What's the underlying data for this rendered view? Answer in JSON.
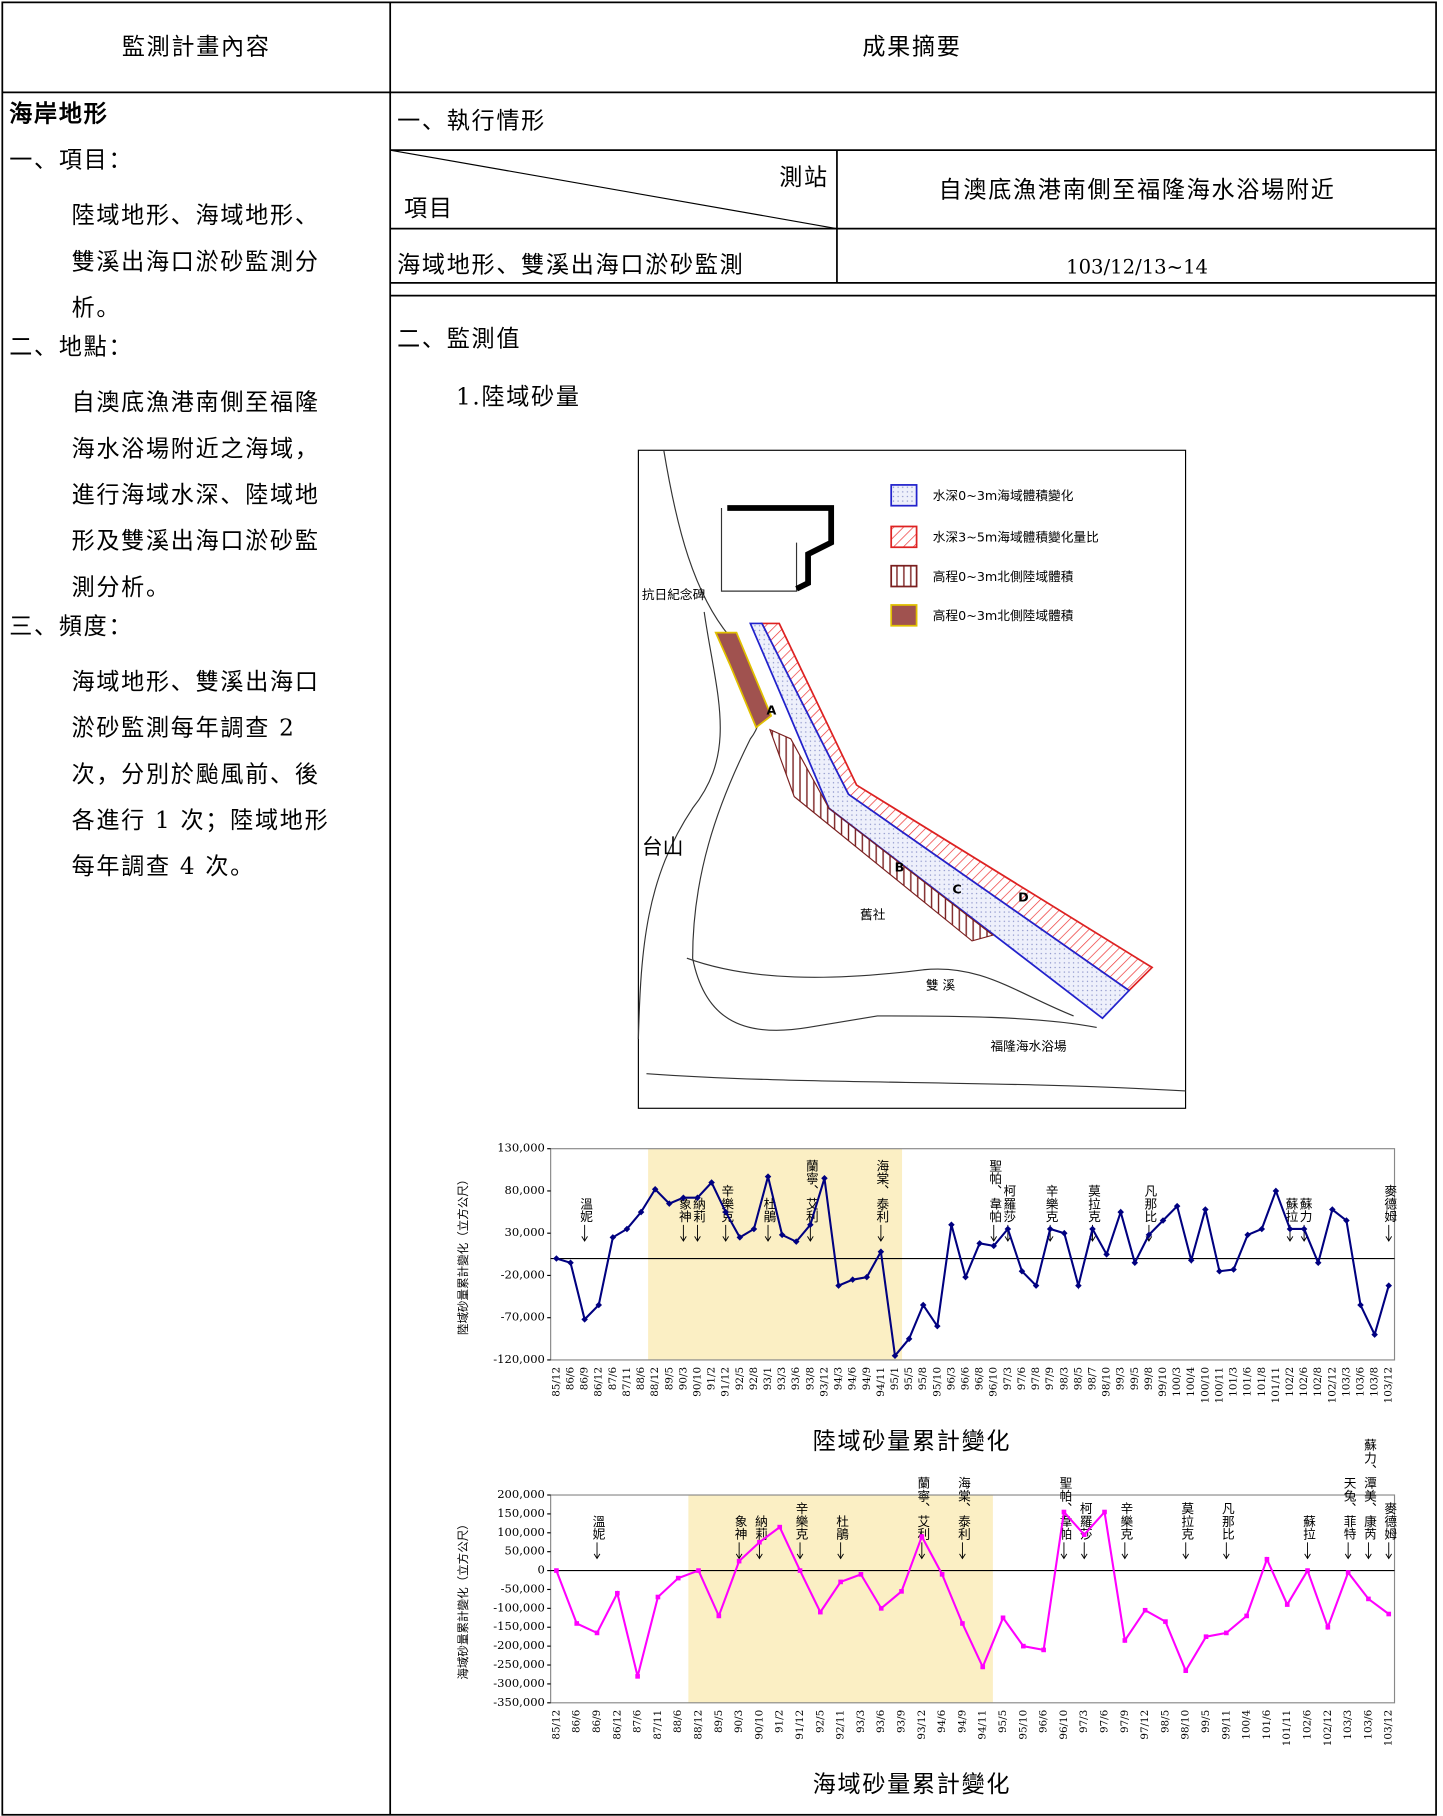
{
  "header": {
    "columns": [
      "監測計畫內容",
      "成果摘要"
    ]
  },
  "left": {
    "heading": "海岸地形",
    "sections": [
      {
        "title": "一、項目：",
        "lines": [
          "陸域地形、海域地形、",
          "雙溪出海口淤砂監測分",
          "析。"
        ]
      },
      {
        "title": "二、地點：",
        "lines": [
          "自澳底漁港南側至福隆",
          "海水浴場附近之海域，",
          "進行海域水深、陸域地",
          "形及雙溪出海口淤砂監",
          "測分析。"
        ]
      },
      {
        "title": "三、頻度：",
        "lines": [
          "海域地形、雙溪出海口",
          "淤砂監測每年調查 2",
          "次，分別於颱風前、後",
          "各進行 1 次；陸域地形",
          "每年調查 4 次。"
        ]
      }
    ]
  },
  "right": {
    "section1": "一、執行情形",
    "table": {
      "header_station": "測站",
      "header_item": "項目",
      "station": "自澳底漁港南側至福隆海水浴場附近",
      "item": "海域地形、雙溪出海口淤砂監測",
      "date": "103/12/13~14"
    },
    "section2": "二、監測值",
    "subtitle": "1.陸域砂量"
  },
  "map": {
    "legend": [
      "水深0~3m海域體積變化",
      "水深3~5m海域體積變化量比",
      "高程0~3m北側陸域體積",
      "高程0~3m北側陸域體積"
    ],
    "labels": [
      "台山",
      "A",
      "B",
      "C",
      "D",
      "抗日紀念碑",
      "舊社",
      "雙 溪",
      "福隆海水浴場"
    ]
  },
  "chart_data": [
    {
      "type": "line",
      "title": "陸域砂量累計變化",
      "y_label": "陸域砂量累計變化（立方公尺）",
      "color": "#000080",
      "categories": [
        "85/12",
        "86/6",
        "86/9",
        "86/12",
        "87/6",
        "87/11",
        "88/6",
        "88/12",
        "89/5",
        "90/3",
        "90/10",
        "91/2",
        "91/12",
        "92/5",
        "92/8",
        "93/1",
        "93/3",
        "93/6",
        "93/8",
        "93/12",
        "94/3",
        "94/6",
        "94/9",
        "94/11",
        "95/1",
        "95/5",
        "95/8",
        "95/10",
        "96/3",
        "96/6",
        "96/8",
        "96/10",
        "97/3",
        "97/6",
        "97/8",
        "97/9",
        "98/3",
        "98/5",
        "98/7",
        "98/10",
        "99/3",
        "99/5",
        "99/8",
        "99/10",
        "100/3",
        "100/4",
        "100/10",
        "100/11",
        "101/3",
        "101/6",
        "101/8",
        "101/11",
        "102/2",
        "102/6",
        "102/8",
        "102/12",
        "103/3",
        "103/6",
        "103/8",
        "103/12"
      ],
      "values": [
        0,
        -5000,
        -72000,
        -55000,
        25000,
        35000,
        55000,
        82000,
        65000,
        72000,
        72000,
        90000,
        55000,
        25000,
        35000,
        97000,
        28000,
        20000,
        40000,
        95000,
        -32000,
        -25000,
        -22000,
        8000,
        -115000,
        -95000,
        -55000,
        -80000,
        40000,
        -22000,
        18000,
        15000,
        35000,
        -15000,
        -32000,
        35000,
        30000,
        -32000,
        35000,
        5000,
        55000,
        -5000,
        28000,
        45000,
        62000,
        -2000,
        58000,
        -15000,
        -13000,
        28000,
        35000,
        80000,
        35000,
        35000,
        -5000,
        58000,
        45000,
        -55000,
        -90000,
        -32000
      ],
      "ylim": [
        -120000,
        130000
      ],
      "yticks": [
        {
          "value": 130000,
          "label": "130,000"
        },
        {
          "value": 80000,
          "label": "80,000"
        },
        {
          "value": 30000,
          "label": "30,000"
        },
        {
          "value": -20000,
          "label": "-20,000"
        },
        {
          "value": -70000,
          "label": "-70,000"
        },
        {
          "value": -120000,
          "label": "-120,000"
        }
      ],
      "highlight_range": [
        7,
        24
      ],
      "annotations": [
        {
          "label": "溫妮",
          "x": 2
        },
        {
          "label": "象神",
          "x": 9
        },
        {
          "label": "納莉",
          "x": 10
        },
        {
          "label": "辛樂克",
          "x": 12
        },
        {
          "label": "杜鵑",
          "x": 15
        },
        {
          "label": "蘭寧、艾利",
          "x": 18
        },
        {
          "label": "海棠、泰利",
          "x": 23
        },
        {
          "label": "聖帕、韋帕",
          "x": 31
        },
        {
          "label": "柯羅莎",
          "x": 32
        },
        {
          "label": "辛樂克",
          "x": 35
        },
        {
          "label": "莫拉克",
          "x": 38
        },
        {
          "label": "凡那比",
          "x": 42
        },
        {
          "label": "蘇拉",
          "x": 52
        },
        {
          "label": "蘇力",
          "x": 53
        },
        {
          "label": "麥德姆",
          "x": 59
        }
      ]
    },
    {
      "type": "line",
      "title": "海域砂量累計變化",
      "y_label": "海域砂量累計變化（立方公尺）",
      "color": "#ff00ff",
      "categories": [
        "85/12",
        "86/6",
        "86/9",
        "86/12",
        "87/6",
        "87/11",
        "88/6",
        "88/12",
        "89/5",
        "90/3",
        "90/10",
        "91/2",
        "91/12",
        "92/5",
        "92/11",
        "93/3",
        "93/6",
        "93/9",
        "93/12",
        "94/6",
        "94/9",
        "94/11",
        "95/5",
        "95/10",
        "96/6",
        "96/10",
        "97/3",
        "97/6",
        "97/9",
        "97/12",
        "98/5",
        "98/10",
        "99/5",
        "99/11",
        "100/4",
        "101/6",
        "101/11",
        "102/6",
        "102/12",
        "103/3",
        "103/6",
        "103/12"
      ],
      "values": [
        0,
        -140000,
        -165000,
        -60000,
        -280000,
        -70000,
        -20000,
        0,
        -120000,
        25000,
        75000,
        115000,
        0,
        -110000,
        -30000,
        -10000,
        -100000,
        -55000,
        90000,
        -10000,
        -140000,
        -255000,
        -125000,
        -200000,
        -210000,
        155000,
        95000,
        155000,
        -185000,
        -105000,
        -135000,
        -265000,
        -175000,
        -165000,
        -120000,
        30000,
        -90000,
        0,
        -150000,
        -5000,
        -75000,
        -115000
      ],
      "ylim": [
        -350000,
        200000
      ],
      "yticks": [
        {
          "value": 200000,
          "label": "200,000"
        },
        {
          "value": 150000,
          "label": "150,000"
        },
        {
          "value": 100000,
          "label": "100,000"
        },
        {
          "value": 50000,
          "label": "50,000"
        },
        0,
        {
          "value": -50000,
          "label": "-50,000"
        },
        {
          "value": -100000,
          "label": "-100,000"
        },
        {
          "value": -150000,
          "label": "-150,000"
        },
        {
          "value": -200000,
          "label": "-200,000"
        },
        {
          "value": -250000,
          "label": "-250,000"
        },
        {
          "value": -300000,
          "label": "-300,000"
        },
        {
          "value": -350000,
          "label": "-350,000"
        }
      ],
      "highlight_range": [
        7,
        21
      ],
      "annotations": [
        {
          "label": "溫妮",
          "x": 2
        },
        {
          "label": "象神",
          "x": 9
        },
        {
          "label": "納莉",
          "x": 10
        },
        {
          "label": "辛樂克",
          "x": 12
        },
        {
          "label": "杜鵑",
          "x": 14
        },
        {
          "label": "蘭寧、艾利",
          "x": 18
        },
        {
          "label": "海棠、泰利",
          "x": 20
        },
        {
          "label": "聖帕、韋帕",
          "x": 25
        },
        {
          "label": "柯羅莎",
          "x": 26
        },
        {
          "label": "辛樂克",
          "x": 28
        },
        {
          "label": "莫拉克",
          "x": 31
        },
        {
          "label": "凡那比",
          "x": 33
        },
        {
          "label": "蘇拉",
          "x": 37
        },
        {
          "label": "天兔、菲特",
          "x": 39
        },
        {
          "label": "蘇力、潭美、康芮",
          "x": 40
        },
        {
          "label": "麥德姆",
          "x": 41
        }
      ]
    }
  ]
}
